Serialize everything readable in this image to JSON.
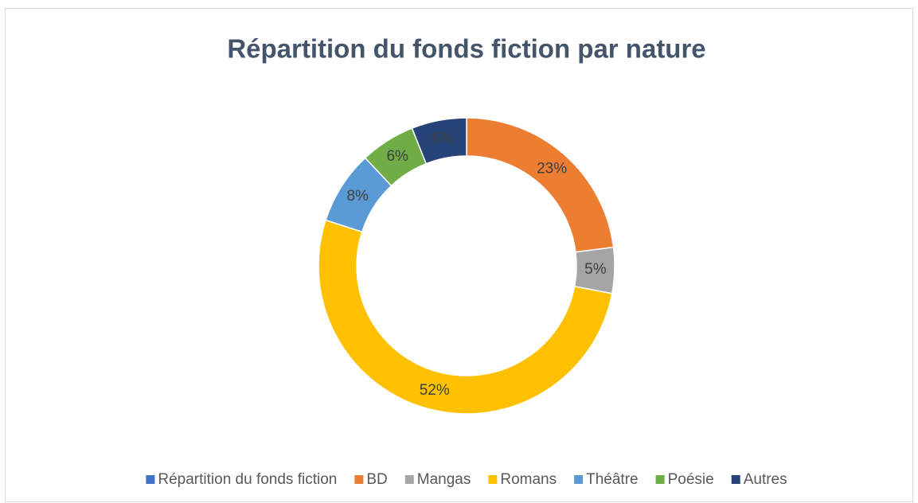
{
  "chart_data": {
    "type": "donut",
    "title": "Répartition du fonds fiction par nature",
    "categories": [
      "Répartition du fonds fiction",
      "BD",
      "Mangas",
      "Romans",
      "Théâtre",
      "Poésie",
      "Autres"
    ],
    "values": [
      null,
      23,
      5,
      52,
      8,
      6,
      6
    ],
    "value_labels": [
      null,
      "23%",
      "5%",
      "52%",
      "8%",
      "6%",
      "6%"
    ],
    "colors": [
      "#4472c4",
      "#ed7d31",
      "#a5a5a5",
      "#ffc000",
      "#5b9bd5",
      "#70ad47",
      "#264478"
    ],
    "legend": "bottom"
  }
}
